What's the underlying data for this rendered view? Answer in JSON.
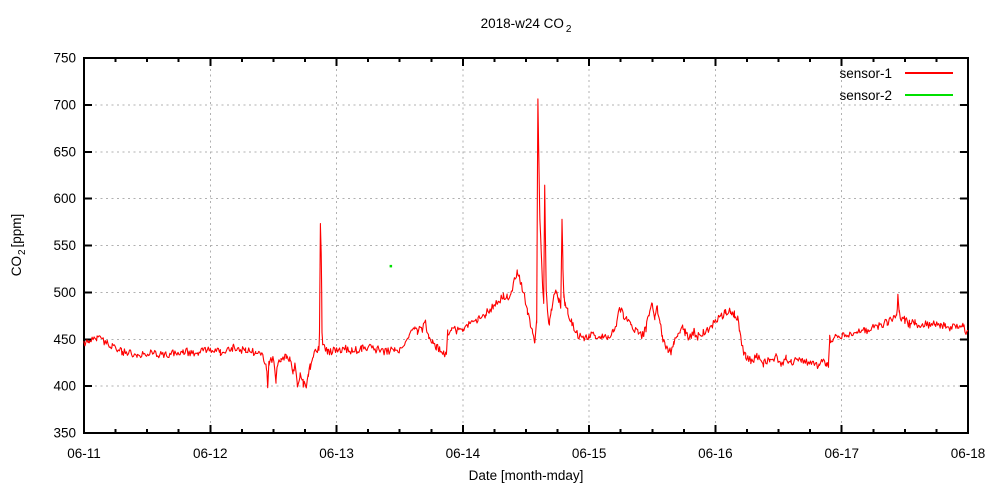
{
  "page": {
    "background": "#ffffff"
  },
  "chart_data": {
    "type": "line",
    "title": "2018-w24 CO₂",
    "title_parts": {
      "main": "2018-w24 CO",
      "sub": "2"
    },
    "xlabel": "Date [month-mday]",
    "ylabel": "CO₂ [ppm]",
    "ylabel_parts": {
      "pre": "CO",
      "sub": "2",
      "post": "[ppm]"
    },
    "x_tick_labels": [
      "06-11",
      "06-12",
      "06-13",
      "06-14",
      "06-15",
      "06-16",
      "06-17",
      "06-18"
    ],
    "y_ticks": [
      350,
      400,
      450,
      500,
      550,
      600,
      650,
      700,
      750
    ],
    "ylim": [
      350,
      750
    ],
    "x_minor_ticks_per_major": 4,
    "grid": true,
    "colors": {
      "grid": "#b0b0b0",
      "axis": "#000000",
      "sensor1": "#ff0000",
      "sensor2": "#00e000"
    },
    "legend": {
      "position": "top-right",
      "entries": [
        {
          "label": "sensor-1",
          "color": "#ff0000"
        },
        {
          "label": "sensor-2",
          "color": "#00e000"
        }
      ]
    },
    "series": [
      {
        "name": "sensor-1",
        "color": "#ff0000",
        "style": "noisy-line",
        "noise_ppm": 4.2,
        "x_unit": "days after 06-11",
        "keypoints": [
          [
            0.0,
            446
          ],
          [
            0.04,
            450
          ],
          [
            0.1,
            452
          ],
          [
            0.16,
            448
          ],
          [
            0.22,
            443
          ],
          [
            0.3,
            436
          ],
          [
            0.42,
            434
          ],
          [
            0.55,
            435
          ],
          [
            0.65,
            433
          ],
          [
            0.78,
            437
          ],
          [
            0.9,
            436
          ],
          [
            1.0,
            439
          ],
          [
            1.08,
            436
          ],
          [
            1.18,
            441
          ],
          [
            1.28,
            438
          ],
          [
            1.36,
            436
          ],
          [
            1.42,
            432
          ],
          [
            1.445,
            420
          ],
          [
            1.455,
            402
          ],
          [
            1.465,
            425
          ],
          [
            1.5,
            428
          ],
          [
            1.52,
            407
          ],
          [
            1.535,
            425
          ],
          [
            1.56,
            430
          ],
          [
            1.6,
            431
          ],
          [
            1.63,
            427
          ],
          [
            1.655,
            415
          ],
          [
            1.67,
            422
          ],
          [
            1.69,
            400
          ],
          [
            1.71,
            413
          ],
          [
            1.735,
            403
          ],
          [
            1.755,
            399
          ],
          [
            1.775,
            410
          ],
          [
            1.79,
            420
          ],
          [
            1.81,
            432
          ],
          [
            1.84,
            437
          ],
          [
            1.86,
            440
          ],
          [
            1.865,
            455
          ],
          [
            1.872,
            572
          ],
          [
            1.878,
            545
          ],
          [
            1.882,
            500
          ],
          [
            1.885,
            460
          ],
          [
            1.89,
            443
          ],
          [
            1.93,
            437
          ],
          [
            2.0,
            438
          ],
          [
            2.06,
            440
          ],
          [
            2.12,
            437
          ],
          [
            2.2,
            440
          ],
          [
            2.26,
            443
          ],
          [
            2.32,
            439
          ],
          [
            2.4,
            437
          ],
          [
            2.46,
            440
          ],
          [
            2.5,
            439
          ],
          [
            2.54,
            444
          ],
          [
            2.57,
            452
          ],
          [
            2.6,
            459
          ],
          [
            2.62,
            466
          ],
          [
            2.64,
            459
          ],
          [
            2.66,
            467
          ],
          [
            2.68,
            461
          ],
          [
            2.705,
            473
          ],
          [
            2.715,
            460
          ],
          [
            2.73,
            452
          ],
          [
            2.76,
            447
          ],
          [
            2.79,
            442
          ],
          [
            2.82,
            438
          ],
          [
            2.85,
            434
          ],
          [
            2.87,
            433
          ],
          [
            2.88,
            457
          ],
          [
            2.91,
            461
          ],
          [
            2.95,
            459
          ],
          [
            3.0,
            461
          ],
          [
            3.06,
            466
          ],
          [
            3.12,
            471
          ],
          [
            3.18,
            477
          ],
          [
            3.24,
            485
          ],
          [
            3.28,
            490
          ],
          [
            3.32,
            496
          ],
          [
            3.35,
            494
          ],
          [
            3.38,
            499
          ],
          [
            3.41,
            513
          ],
          [
            3.43,
            522
          ],
          [
            3.45,
            516
          ],
          [
            3.47,
            505
          ],
          [
            3.49,
            496
          ],
          [
            3.51,
            480
          ],
          [
            3.53,
            470
          ],
          [
            3.55,
            458
          ],
          [
            3.57,
            449
          ],
          [
            3.585,
            470
          ],
          [
            3.594,
            703
          ],
          [
            3.602,
            640
          ],
          [
            3.61,
            580
          ],
          [
            3.62,
            545
          ],
          [
            3.63,
            510
          ],
          [
            3.64,
            488
          ],
          [
            3.648,
            616
          ],
          [
            3.654,
            560
          ],
          [
            3.66,
            500
          ],
          [
            3.67,
            477
          ],
          [
            3.685,
            468
          ],
          [
            3.7,
            480
          ],
          [
            3.72,
            497
          ],
          [
            3.74,
            503
          ],
          [
            3.76,
            492
          ],
          [
            3.775,
            485
          ],
          [
            3.785,
            577
          ],
          [
            3.792,
            530
          ],
          [
            3.8,
            495
          ],
          [
            3.81,
            487
          ],
          [
            3.83,
            479
          ],
          [
            3.86,
            468
          ],
          [
            3.89,
            458
          ],
          [
            3.92,
            453
          ],
          [
            3.96,
            452
          ],
          [
            4.0,
            454
          ],
          [
            4.05,
            455
          ],
          [
            4.1,
            452
          ],
          [
            4.15,
            453
          ],
          [
            4.19,
            457
          ],
          [
            4.22,
            468
          ],
          [
            4.245,
            484
          ],
          [
            4.27,
            476
          ],
          [
            4.3,
            469
          ],
          [
            4.33,
            467
          ],
          [
            4.36,
            461
          ],
          [
            4.39,
            456
          ],
          [
            4.42,
            454
          ],
          [
            4.45,
            461
          ],
          [
            4.475,
            479
          ],
          [
            4.5,
            489
          ],
          [
            4.52,
            474
          ],
          [
            4.54,
            484
          ],
          [
            4.56,
            468
          ],
          [
            4.58,
            452
          ],
          [
            4.6,
            446
          ],
          [
            4.625,
            438
          ],
          [
            4.65,
            436
          ],
          [
            4.67,
            446
          ],
          [
            4.7,
            452
          ],
          [
            4.72,
            459
          ],
          [
            4.74,
            466
          ],
          [
            4.76,
            457
          ],
          [
            4.79,
            452
          ],
          [
            4.83,
            458
          ],
          [
            4.86,
            453
          ],
          [
            4.9,
            456
          ],
          [
            4.94,
            460
          ],
          [
            4.97,
            464
          ],
          [
            5.0,
            468
          ],
          [
            5.04,
            474
          ],
          [
            5.08,
            478
          ],
          [
            5.12,
            481
          ],
          [
            5.15,
            477
          ],
          [
            5.175,
            472
          ],
          [
            5.19,
            462
          ],
          [
            5.21,
            442
          ],
          [
            5.24,
            431
          ],
          [
            5.28,
            427
          ],
          [
            5.33,
            431
          ],
          [
            5.38,
            424
          ],
          [
            5.43,
            428
          ],
          [
            5.48,
            431
          ],
          [
            5.52,
            424
          ],
          [
            5.56,
            430
          ],
          [
            5.6,
            425
          ],
          [
            5.64,
            428
          ],
          [
            5.68,
            429
          ],
          [
            5.71,
            423
          ],
          [
            5.74,
            428
          ],
          [
            5.78,
            425
          ],
          [
            5.82,
            422
          ],
          [
            5.85,
            427
          ],
          [
            5.88,
            424
          ],
          [
            5.895,
            424
          ],
          [
            5.905,
            450
          ],
          [
            5.95,
            452
          ],
          [
            6.0,
            453
          ],
          [
            6.06,
            455
          ],
          [
            6.12,
            457
          ],
          [
            6.18,
            459
          ],
          [
            6.24,
            462
          ],
          [
            6.3,
            465
          ],
          [
            6.36,
            468
          ],
          [
            6.41,
            472
          ],
          [
            6.435,
            478
          ],
          [
            6.445,
            495
          ],
          [
            6.455,
            480
          ],
          [
            6.47,
            473
          ],
          [
            6.5,
            470
          ],
          [
            6.54,
            466
          ],
          [
            6.58,
            469
          ],
          [
            6.62,
            464
          ],
          [
            6.66,
            466
          ],
          [
            6.7,
            465
          ],
          [
            6.74,
            468
          ],
          [
            6.78,
            464
          ],
          [
            6.82,
            466
          ],
          [
            6.86,
            462
          ],
          [
            6.9,
            464
          ],
          [
            6.93,
            461
          ],
          [
            6.96,
            463
          ],
          [
            7.0,
            456
          ]
        ]
      },
      {
        "name": "sensor-2",
        "color": "#00e000",
        "style": "points",
        "points": [
          [
            2.43,
            528
          ]
        ]
      }
    ]
  }
}
